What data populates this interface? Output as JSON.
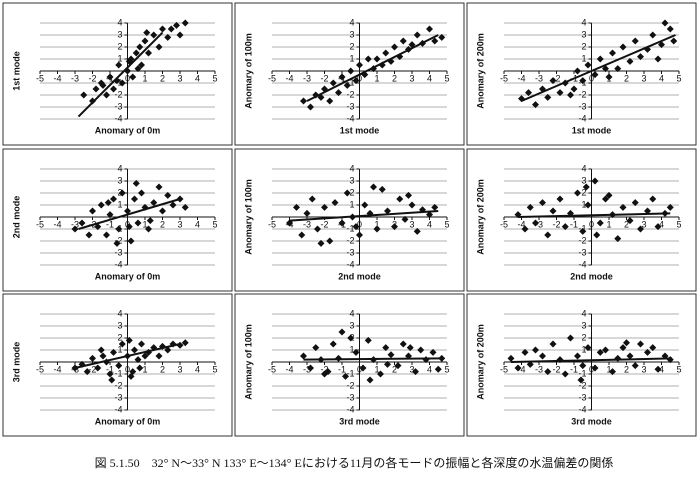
{
  "caption": "図 5.1.50　32° N～33° N 133° E～134° Eにおける11月の各モードの振幅と各深度の水温偏差の関係",
  "chart_data": [
    {
      "type": "scatter",
      "xlabel": "Anomary of 0m",
      "ylabel": "1st mode",
      "color": "#111111",
      "xlim": [
        -5,
        5
      ],
      "ylim": [
        -4,
        4
      ],
      "xticks": [
        -5,
        -4,
        -3,
        -2,
        -1,
        0,
        1,
        2,
        3,
        4,
        5
      ],
      "yticks": [
        -4,
        -3,
        -2,
        -1,
        1,
        2,
        3,
        4
      ],
      "grid": true,
      "x": [
        -2.5,
        -2,
        -1.8,
        -1.5,
        -1.2,
        -1,
        -0.8,
        -0.5,
        -0.3,
        0,
        0.2,
        0.3,
        0.5,
        0.7,
        0.8,
        1,
        1.2,
        1.5,
        1.8,
        2,
        2.3,
        2.5,
        3,
        3.3,
        -0.6,
        0.1,
        0.6,
        1.1,
        -1.4,
        2.8
      ],
      "y": [
        -2,
        -2.5,
        -1.5,
        -1,
        -2,
        -0.5,
        -1.5,
        0.5,
        -1,
        0,
        1,
        -0.5,
        1.5,
        2,
        0.5,
        2.5,
        1.5,
        3,
        2,
        3.5,
        2.8,
        3.5,
        3,
        4,
        -0.8,
        0.8,
        0.2,
        3.2,
        -1.2,
        3.8
      ],
      "trend": {
        "x": [
          -2.8,
          2
        ],
        "y": [
          -3.8,
          3.2
        ]
      }
    },
    {
      "type": "scatter",
      "xlabel": "1st mode",
      "ylabel": "Anomary of 100m",
      "color": "#111111",
      "xlim": [
        -5,
        5
      ],
      "ylim": [
        -4,
        4
      ],
      "xticks": [
        -5,
        -4,
        -3,
        -2,
        -1,
        0,
        1,
        2,
        3,
        4,
        5
      ],
      "yticks": [
        -4,
        -3,
        -2,
        -1,
        1,
        2,
        3,
        4
      ],
      "grid": true,
      "x": [
        -3.2,
        -2.8,
        -2.5,
        -2.2,
        -2,
        -1.7,
        -1.5,
        -1.2,
        -1,
        -0.7,
        -0.5,
        -0.2,
        0,
        0.3,
        0.5,
        0.8,
        1,
        1.3,
        1.5,
        1.8,
        2,
        2.3,
        2.5,
        2.8,
        3,
        3.3,
        3.6,
        4,
        4.3,
        4.7
      ],
      "y": [
        -2.5,
        -3,
        -2,
        -2.2,
        -1.5,
        -2.5,
        -1,
        -1.8,
        -0.5,
        -1.2,
        0,
        -0.8,
        0.5,
        -0.3,
        1,
        0.2,
        1,
        0.5,
        1.5,
        0.8,
        2,
        1.2,
        2.5,
        1.8,
        2.2,
        3,
        2.3,
        3.5,
        2.5,
        2.8
      ],
      "trend": {
        "x": [
          -3,
          4.5
        ],
        "y": [
          -2.5,
          3
        ]
      }
    },
    {
      "type": "scatter",
      "xlabel": "1st mode",
      "ylabel": "Anomary of 200m",
      "color": "#111111",
      "xlim": [
        -5,
        5
      ],
      "ylim": [
        -4,
        4
      ],
      "xticks": [
        -5,
        -4,
        -3,
        -2,
        -1,
        0,
        1,
        2,
        3,
        4,
        5
      ],
      "yticks": [
        -4,
        -3,
        -2,
        -1,
        1,
        2,
        3,
        4
      ],
      "grid": true,
      "x": [
        -4,
        -3.6,
        -3.2,
        -2.8,
        -2.5,
        -2.2,
        -1.8,
        -1.5,
        -1.2,
        -0.8,
        -0.5,
        -0.2,
        0.2,
        0.5,
        0.8,
        1.2,
        1.5,
        1.8,
        2.2,
        2.5,
        2.8,
        3.2,
        3.5,
        3.8,
        4,
        4.2,
        4.5,
        4.7,
        -1,
        1
      ],
      "y": [
        -2.3,
        -1.8,
        -2.8,
        -1.5,
        -2.2,
        -0.8,
        -1.8,
        -1,
        -2,
        0,
        -0.8,
        0.5,
        -0.3,
        1,
        0.2,
        1.5,
        0.2,
        2,
        0.8,
        2.5,
        1.2,
        1.8,
        3,
        1,
        2.2,
        4,
        3.5,
        2.5,
        -1.5,
        -0.5
      ],
      "trend": {
        "x": [
          -4,
          4.8
        ],
        "y": [
          -2.5,
          3
        ]
      }
    },
    {
      "type": "scatter",
      "xlabel": "Anomary of 0m",
      "ylabel": "2nd mode",
      "color": "#111111",
      "xlim": [
        -5,
        5
      ],
      "ylim": [
        -4,
        4
      ],
      "xticks": [
        -5,
        -4,
        -3,
        -2,
        -1,
        0,
        1,
        2,
        3,
        4,
        5
      ],
      "yticks": [
        -4,
        -3,
        -2,
        -1,
        1,
        2,
        3,
        4
      ],
      "grid": true,
      "x": [
        -3,
        -2.6,
        -2.2,
        -2,
        -1.7,
        -1.5,
        -1.2,
        -1,
        -0.8,
        -0.5,
        -0.3,
        0,
        0.2,
        0.4,
        0.6,
        0.8,
        1,
        1.2,
        1.5,
        1.8,
        2,
        2.3,
        2.6,
        3,
        3.3,
        -0.6,
        0.5,
        1.3,
        -1.1,
        0.1
      ],
      "y": [
        -1,
        -0.5,
        -1.5,
        0.5,
        -0.8,
        1,
        -1.5,
        0.2,
        1.5,
        -1,
        2,
        0.5,
        -2,
        1.5,
        -0.5,
        2,
        0.8,
        -1,
        1.2,
        2.5,
        0.5,
        1.8,
        1,
        1.5,
        0.8,
        -2.2,
        2.8,
        -0.3,
        1.2,
        -0.8
      ],
      "trend": {
        "x": [
          -2.8,
          3
        ],
        "y": [
          -1,
          1.5
        ]
      }
    },
    {
      "type": "scatter",
      "xlabel": "2nd mode",
      "ylabel": "Anomary of 100m",
      "color": "#111111",
      "xlim": [
        -5,
        5
      ],
      "ylim": [
        -4,
        4
      ],
      "xticks": [
        -5,
        -4,
        -3,
        -2,
        -1,
        0,
        1,
        2,
        3,
        4,
        5
      ],
      "yticks": [
        -4,
        -3,
        -2,
        -1,
        1,
        2,
        3,
        4
      ],
      "grid": true,
      "x": [
        -4,
        -3.6,
        -3.3,
        -3,
        -2.7,
        -2.4,
        -2,
        -1.7,
        -1.4,
        -1,
        -0.7,
        -0.4,
        0,
        0.3,
        0.6,
        1,
        1.3,
        1.6,
        2,
        2.3,
        2.6,
        3,
        3.3,
        3.6,
        4,
        4.3,
        -2.2,
        0.8,
        2.8,
        -0.2
      ],
      "y": [
        -0.5,
        0.8,
        -1.5,
        0.3,
        1.5,
        -1,
        0.8,
        -2,
        1.2,
        -0.5,
        2,
        0,
        -1.5,
        1,
        0.3,
        -1,
        2.3,
        0.5,
        -0.8,
        1.5,
        -0.2,
        1,
        -1.2,
        0.6,
        0.2,
        0.8,
        -2.2,
        2.5,
        1.8,
        -0.8
      ],
      "trend": {
        "x": [
          -4,
          4.5
        ],
        "y": [
          -0.3,
          0.5
        ]
      }
    },
    {
      "type": "scatter",
      "xlabel": "2nd mode",
      "ylabel": "Anomary of 200m",
      "color": "#111111",
      "xlim": [
        -5,
        5
      ],
      "ylim": [
        -4,
        4
      ],
      "xticks": [
        -5,
        -4,
        -3,
        -2,
        -1,
        0,
        1,
        2,
        3,
        4,
        5
      ],
      "yticks": [
        -4,
        -3,
        -2,
        -1,
        1,
        2,
        3,
        4
      ],
      "grid": true,
      "x": [
        -4.2,
        -3.8,
        -3.5,
        -3.2,
        -2.8,
        -2.5,
        -2.2,
        -1.8,
        -1.5,
        -1.2,
        -0.8,
        -0.5,
        -0.2,
        0.2,
        0.5,
        0.8,
        1.2,
        1.5,
        1.8,
        2.2,
        2.5,
        2.8,
        3.2,
        3.5,
        3.8,
        4.2,
        4.5,
        -0.3,
        0.3,
        1
      ],
      "y": [
        0.2,
        -1,
        0.8,
        -0.5,
        1.2,
        -1.5,
        0.5,
        1.5,
        -0.8,
        0.3,
        2,
        -1.2,
        1,
        3,
        -0.5,
        1.5,
        0.2,
        -1.8,
        0.8,
        -0.3,
        1.2,
        -1,
        0.5,
        1.5,
        -0.8,
        0.3,
        0.8,
        2.5,
        -1.5,
        1.8
      ],
      "trend": {
        "x": [
          -4.2,
          4.5
        ],
        "y": [
          0,
          0.3
        ]
      }
    },
    {
      "type": "scatter",
      "xlabel": "Anomary of 0m",
      "ylabel": "3rd mode",
      "color": "#111111",
      "xlim": [
        -5,
        5
      ],
      "ylim": [
        -4,
        4
      ],
      "xticks": [
        -5,
        -4,
        -3,
        -2,
        -1,
        0,
        1,
        2,
        3,
        4,
        5
      ],
      "yticks": [
        -4,
        -3,
        -2,
        -1,
        1,
        2,
        3,
        4
      ],
      "grid": true,
      "x": [
        -3,
        -2.6,
        -2.3,
        -2,
        -1.7,
        -1.5,
        -1.2,
        -1,
        -0.8,
        -0.5,
        -0.3,
        0,
        0.2,
        0.4,
        0.6,
        0.8,
        1,
        1.2,
        1.5,
        1.8,
        2,
        2.3,
        2.6,
        3,
        3.3,
        -0.9,
        0.1,
        0.7,
        -1.4,
        0.3
      ],
      "y": [
        -0.5,
        -0.2,
        -0.8,
        0.3,
        -0.5,
        1,
        0,
        -1,
        0.8,
        -0.3,
        1.5,
        0.5,
        -1.2,
        1,
        0.2,
        1.5,
        0.5,
        0.8,
        1.2,
        0.5,
        1.3,
        1,
        1.5,
        1.4,
        1.6,
        -1.5,
        1.8,
        -0.5,
        0.5,
        -0.8
      ],
      "trend": {
        "x": [
          -3,
          3
        ],
        "y": [
          -0.5,
          1.5
        ]
      }
    },
    {
      "type": "scatter",
      "xlabel": "3rd mode",
      "ylabel": "Anomary of 100m",
      "color": "#111111",
      "xlim": [
        -5,
        5
      ],
      "ylim": [
        -4,
        4
      ],
      "xticks": [
        -5,
        -4,
        -3,
        -2,
        -1,
        0,
        1,
        2,
        3,
        4,
        5
      ],
      "yticks": [
        -4,
        -3,
        -2,
        -1,
        1,
        2,
        3,
        4
      ],
      "grid": true,
      "x": [
        -3.2,
        -2.8,
        -2.5,
        -2.2,
        -1.8,
        -1.5,
        -1.2,
        -0.8,
        -0.5,
        -0.2,
        0.2,
        0.5,
        0.8,
        1.2,
        1.5,
        1.8,
        2.2,
        2.5,
        2.8,
        3.2,
        3.5,
        3.8,
        4.2,
        4.5,
        4.7,
        -1,
        0.6,
        1.6,
        2.9,
        -2
      ],
      "y": [
        0.5,
        -0.5,
        1.2,
        0.2,
        -0.8,
        1.5,
        0.3,
        -1.2,
        2,
        0.8,
        -0.5,
        1.8,
        0.2,
        -1,
        1.2,
        0.6,
        -0.3,
        1.5,
        0.5,
        -0.8,
        1,
        0.2,
        0.8,
        -0.6,
        0.3,
        2.5,
        -1.5,
        -0.2,
        1.2,
        -1
      ],
      "trend": {
        "x": [
          -3.2,
          4.8
        ],
        "y": [
          0.2,
          0.3
        ]
      }
    },
    {
      "type": "scatter",
      "xlabel": "3rd mode",
      "ylabel": "Anomary of 200m",
      "color": "#111111",
      "xlim": [
        -5,
        5
      ],
      "ylim": [
        -4,
        4
      ],
      "xticks": [
        -5,
        -4,
        -3,
        -2,
        -1,
        0,
        1,
        2,
        3,
        4,
        5
      ],
      "yticks": [
        -4,
        -3,
        -2,
        -1,
        1,
        2,
        3,
        4
      ],
      "grid": true,
      "x": [
        -4.6,
        -4.2,
        -3.8,
        -3.5,
        -3.2,
        -2.8,
        -2.5,
        -2.2,
        -1.8,
        -1.5,
        -1.2,
        -0.8,
        -0.5,
        -0.2,
        0.2,
        0.5,
        0.8,
        1.2,
        1.5,
        1.8,
        2.2,
        2.5,
        2.8,
        3.2,
        3.5,
        3.8,
        4.2,
        4.5,
        -0.6,
        2
      ],
      "y": [
        0.3,
        -0.5,
        0.8,
        -0.2,
        1,
        0.5,
        -0.8,
        1.5,
        0.2,
        -1,
        2,
        0.5,
        -0.3,
        1.2,
        -0.5,
        0.8,
        1,
        -0.8,
        0.3,
        1.2,
        0.5,
        -0.3,
        1.5,
        0.8,
        1.2,
        -0.6,
        0.5,
        0.2,
        -1.5,
        1.6
      ],
      "trend": {
        "x": [
          -4.6,
          4.6
        ],
        "y": [
          0,
          0.3
        ]
      }
    }
  ]
}
